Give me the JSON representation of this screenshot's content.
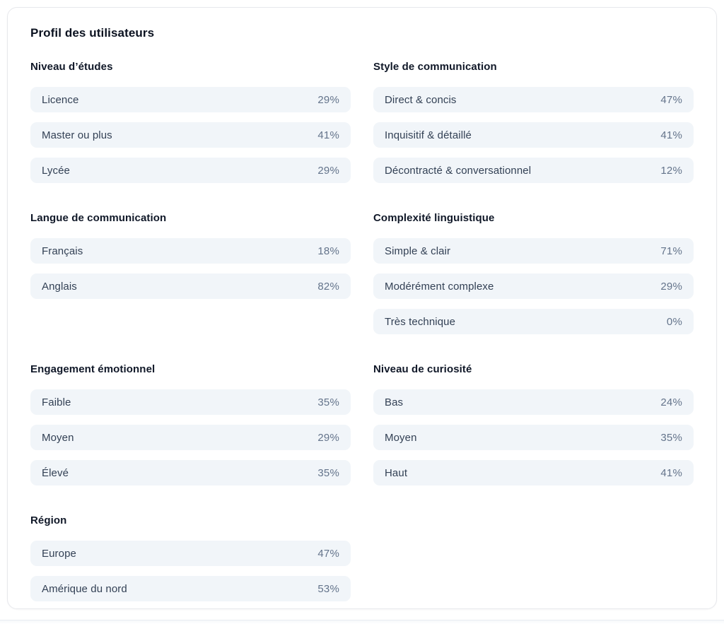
{
  "card": {
    "title": "Profil des utilisateurs",
    "sections": [
      {
        "heading": "Niveau d’études",
        "rows": [
          {
            "label": "Licence",
            "value": "29%"
          },
          {
            "label": "Master ou plus",
            "value": "41%"
          },
          {
            "label": "Lycée",
            "value": "29%"
          }
        ]
      },
      {
        "heading": "Style de communication",
        "rows": [
          {
            "label": "Direct & concis",
            "value": "47%"
          },
          {
            "label": "Inquisitif & détaillé",
            "value": "41%"
          },
          {
            "label": "Décontracté & conversationnel",
            "value": "12%"
          }
        ]
      },
      {
        "heading": "Langue de communication",
        "rows": [
          {
            "label": "Français",
            "value": "18%"
          },
          {
            "label": "Anglais",
            "value": "82%"
          }
        ]
      },
      {
        "heading": "Complexité linguistique",
        "rows": [
          {
            "label": "Simple & clair",
            "value": "71%"
          },
          {
            "label": "Modérément complexe",
            "value": "29%"
          },
          {
            "label": "Très technique",
            "value": "0%"
          }
        ]
      },
      {
        "heading": "Engagement émotionnel",
        "rows": [
          {
            "label": "Faible",
            "value": "35%"
          },
          {
            "label": "Moyen",
            "value": "29%"
          },
          {
            "label": "Élevé",
            "value": "35%"
          }
        ]
      },
      {
        "heading": "Niveau de curiosité",
        "rows": [
          {
            "label": "Bas",
            "value": "24%"
          },
          {
            "label": "Moyen",
            "value": "35%"
          },
          {
            "label": "Haut",
            "value": "41%"
          }
        ]
      },
      {
        "heading": "Région",
        "rows": [
          {
            "label": "Europe",
            "value": "47%"
          },
          {
            "label": "Amérique du nord",
            "value": "53%"
          }
        ]
      }
    ]
  },
  "colors": {
    "card_background": "#ffffff",
    "card_border": "#e7e8ec",
    "row_background": "#f1f5f9",
    "heading_text": "#101828",
    "label_text": "#334155",
    "value_text": "#64748b"
  }
}
